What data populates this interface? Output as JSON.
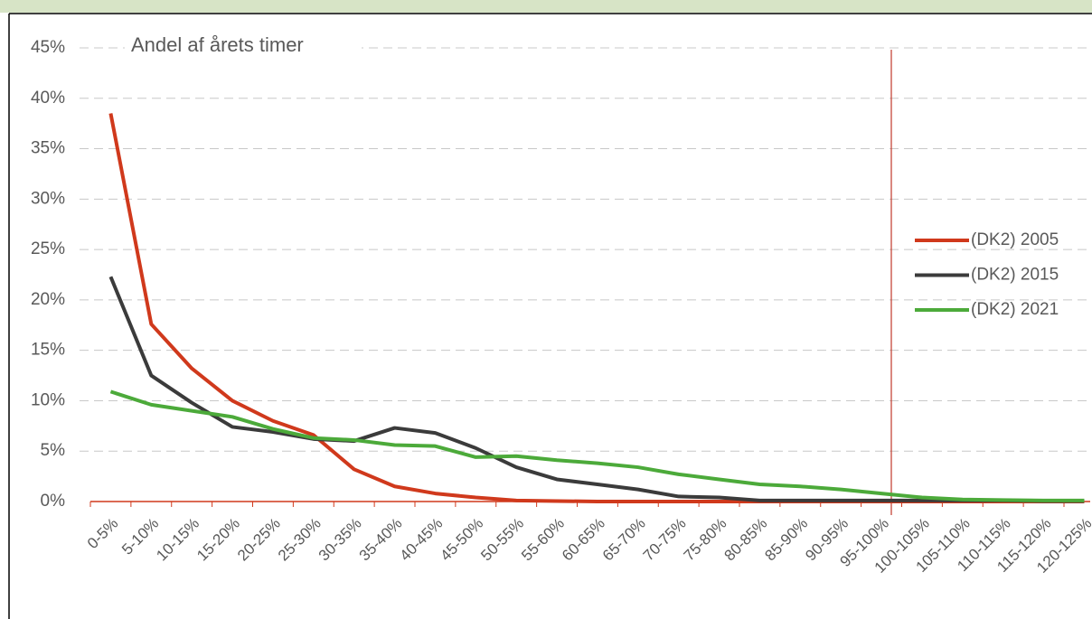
{
  "chart_data": {
    "type": "line",
    "annotation": "Andel af årets timer",
    "categories": [
      "0-5%",
      "5-10%",
      "10-15%",
      "15-20%",
      "20-25%",
      "25-30%",
      "30-35%",
      "35-40%",
      "40-45%",
      "45-50%",
      "50-55%",
      "55-60%",
      "60-65%",
      "65-70%",
      "70-75%",
      "75-80%",
      "80-85%",
      "85-90%",
      "90-95%",
      "95-100%",
      "100-105%",
      "105-110%",
      "110-115%",
      "115-120%",
      "120-125%"
    ],
    "series": [
      {
        "name": "(DK2) 2005",
        "color": "#d0391c",
        "values": [
          38.5,
          17.6,
          13.2,
          10.0,
          8.0,
          6.6,
          3.2,
          1.5,
          0.8,
          0.4,
          0.1,
          0.05,
          0,
          0,
          0,
          0,
          0,
          0,
          0,
          0,
          0,
          0,
          0,
          0,
          0
        ]
      },
      {
        "name": "(DK2) 2015",
        "color": "#3b3b3b",
        "values": [
          22.3,
          12.5,
          9.8,
          7.4,
          6.9,
          6.2,
          6.0,
          7.3,
          6.8,
          5.3,
          3.4,
          2.2,
          1.7,
          1.2,
          0.5,
          0.4,
          0.1,
          0.1,
          0.1,
          0.1,
          0.1,
          0.1,
          0.1,
          0.05,
          0.05
        ]
      },
      {
        "name": "(DK2) 2021",
        "color": "#4caa3a",
        "values": [
          10.9,
          9.6,
          9.0,
          8.4,
          7.2,
          6.3,
          6.1,
          5.6,
          5.5,
          4.4,
          4.5,
          4.1,
          3.8,
          3.4,
          2.7,
          2.2,
          1.7,
          1.5,
          1.2,
          0.8,
          0.4,
          0.2,
          0.15,
          0.1,
          0.1
        ]
      }
    ],
    "ylim": [
      0,
      45
    ],
    "yticks": [
      {
        "value": 0,
        "label": "0%"
      },
      {
        "value": 5,
        "label": "5%"
      },
      {
        "value": 10,
        "label": "10%"
      },
      {
        "value": 15,
        "label": "15%"
      },
      {
        "value": 20,
        "label": "20%"
      },
      {
        "value": 25,
        "label": "25%"
      },
      {
        "value": 30,
        "label": "30%"
      },
      {
        "value": 35,
        "label": "35%"
      },
      {
        "value": 40,
        "label": "40%"
      },
      {
        "value": 45,
        "label": "45%"
      }
    ],
    "grid": true
  }
}
